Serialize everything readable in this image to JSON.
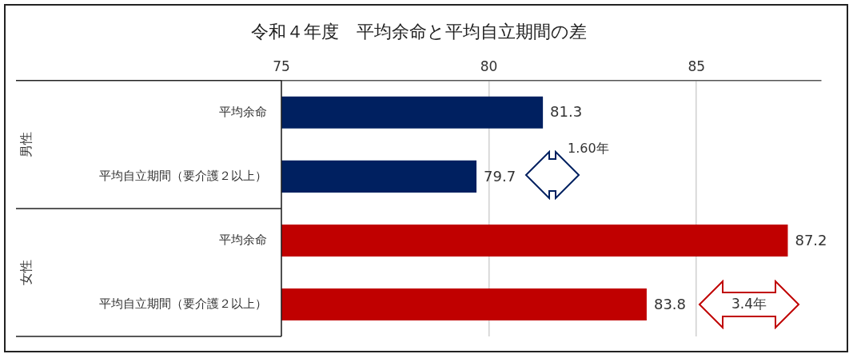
{
  "chart_data": {
    "type": "bar",
    "orientation": "horizontal",
    "title": "令和４年度　平均余命と平均自立期間の差",
    "categories": [
      "平均余命",
      "平均自立期間（要介護２以上）",
      "平均余命",
      "平均自立期間（要介護２以上）"
    ],
    "values": [
      81.3,
      79.7,
      87.2,
      83.8
    ],
    "colors": [
      "#002060",
      "#002060",
      "#c00000",
      "#c00000"
    ],
    "xlim": [
      75,
      88
    ],
    "xticks": [
      75,
      80,
      85
    ],
    "grid": "x",
    "data_labels": true,
    "legend": false,
    "annotations": [
      "男性",
      "女性",
      "1.60年",
      "3.4年"
    ]
  }
}
